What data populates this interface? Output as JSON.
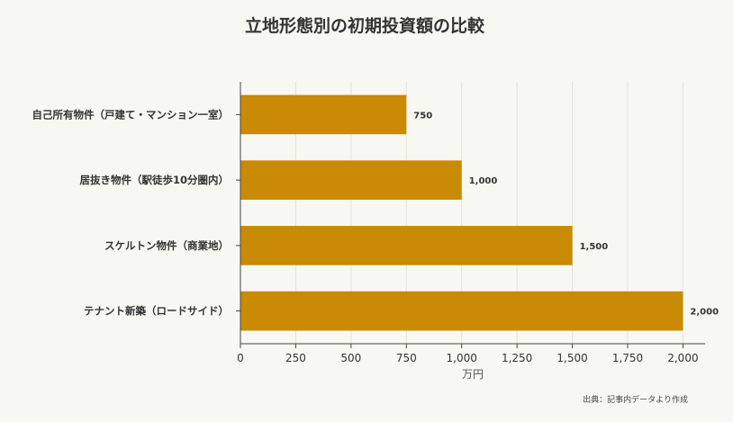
{
  "chart_data": {
    "type": "bar",
    "orientation": "horizontal",
    "title": "立地形態別の初期投資額の比較",
    "xlabel": "万円",
    "ylabel": "",
    "categories": [
      "自己所有物件（戸建て・マンション一室）",
      "居抜き物件（駅徒歩10分圏内）",
      "スケルトン物件（商業地）",
      "テナント新築（ロードサイド）"
    ],
    "values": [
      750,
      1000,
      1500,
      2000
    ],
    "data_labels": [
      "750",
      "1,000",
      "1,500",
      "2,000"
    ],
    "xlim": [
      0,
      2100
    ],
    "xticks": [
      0,
      250,
      500,
      750,
      1000,
      1250,
      1500,
      1750,
      2000
    ],
    "xtick_labels": [
      "0",
      "250",
      "500",
      "750",
      "1,000",
      "1,250",
      "1,500",
      "1,750",
      "2,000"
    ],
    "grid": "vertical",
    "legend": "none",
    "bar_color": "#c98a04",
    "source_note": "出典：記事内データより作成"
  },
  "colors": {
    "background": "#f8f8f3",
    "bar": "#c98a04",
    "grid": "#e4e4dc",
    "axis": "#444444",
    "text": "#333333"
  }
}
